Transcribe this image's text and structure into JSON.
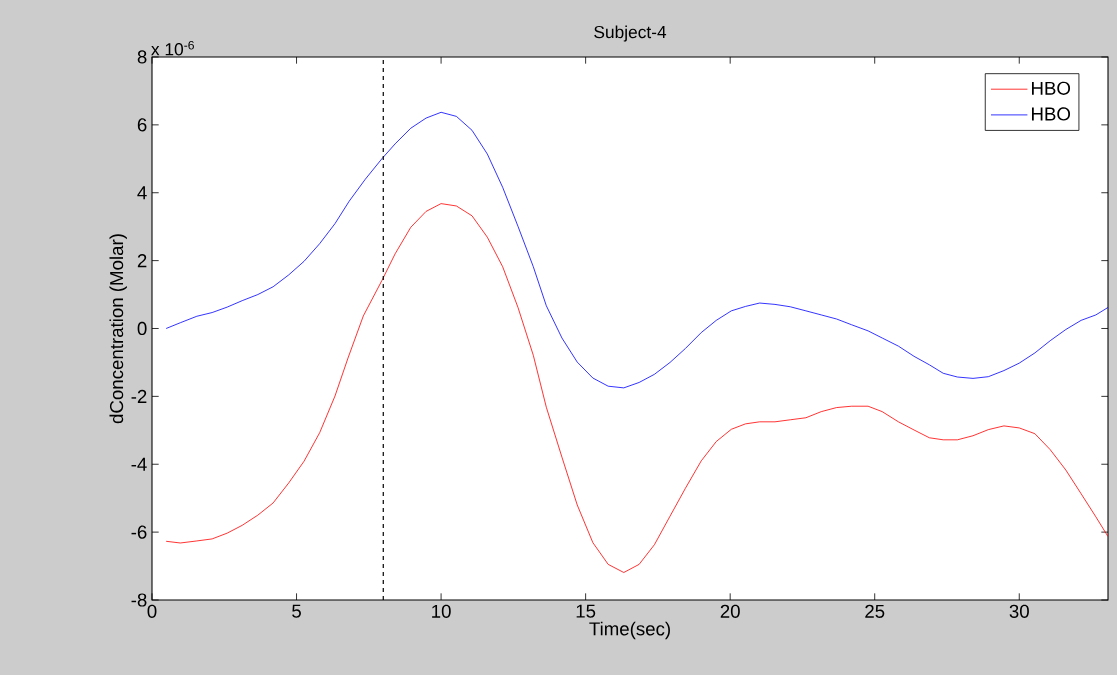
{
  "chart_data": {
    "type": "line",
    "title": "Subject-4",
    "xlabel": "Time(sec)",
    "ylabel": "dConcentration (Molar)",
    "annotations": [
      "x 10$^{-6}$"
    ],
    "series": [
      {
        "name": "HBO",
        "color": "#ff0000",
        "x": [
          0.49,
          0.98,
          1.55,
          2.08,
          2.6,
          3.12,
          3.66,
          4.19,
          4.73,
          5.26,
          5.8,
          6.33,
          6.78,
          7.31,
          7.95,
          8.41,
          8.95,
          9.48,
          10,
          10.53,
          11.07,
          11.6,
          12.13,
          12.66,
          13.19,
          13.64,
          14.18,
          14.71,
          15.25,
          15.78,
          16.32,
          16.85,
          17.38,
          17.92,
          18.45,
          19.0,
          19.52,
          20.04,
          20.53,
          21.02,
          21.55,
          22.08,
          22.62,
          23.15,
          23.68,
          24.2,
          24.77,
          25.26,
          25.82,
          26.36,
          26.89,
          27.37,
          27.86,
          28.4,
          28.93,
          29.47,
          30.0,
          30.54,
          31.07,
          31.61,
          32.14,
          32.65,
          33.07
        ],
        "values": [
          -6.27,
          -6.32,
          -6.26,
          -6.2,
          -6.03,
          -5.8,
          -5.5,
          -5.14,
          -4.55,
          -3.91,
          -3.07,
          -1.99,
          -0.87,
          0.37,
          1.41,
          2.2,
          2.98,
          3.45,
          3.68,
          3.61,
          3.32,
          2.69,
          1.82,
          0.62,
          -0.79,
          -2.32,
          -3.79,
          -5.2,
          -6.31,
          -6.95,
          -7.19,
          -6.95,
          -6.37,
          -5.53,
          -4.71,
          -3.9,
          -3.33,
          -2.97,
          -2.81,
          -2.75,
          -2.75,
          -2.69,
          -2.63,
          -2.45,
          -2.33,
          -2.29,
          -2.29,
          -2.45,
          -2.75,
          -2.99,
          -3.22,
          -3.28,
          -3.28,
          -3.16,
          -2.98,
          -2.87,
          -2.93,
          -3.1,
          -3.57,
          -4.17,
          -4.87,
          -5.55,
          -6.13
        ]
      },
      {
        "name": "HBO",
        "color": "#0000ff",
        "x": [
          0.49,
          0.98,
          1.55,
          2.08,
          2.6,
          3.12,
          3.66,
          4.19,
          4.73,
          5.26,
          5.8,
          6.33,
          6.82,
          7.38,
          7.95,
          8.41,
          8.95,
          9.48,
          10,
          10.53,
          11.07,
          11.6,
          12.13,
          12.66,
          13.19,
          13.64,
          14.18,
          14.71,
          15.25,
          15.78,
          16.32,
          16.85,
          17.38,
          17.92,
          18.45,
          19.0,
          19.52,
          20.04,
          20.53,
          21.02,
          21.55,
          22.08,
          22.62,
          23.15,
          23.68,
          24.2,
          24.77,
          25.26,
          25.82,
          26.36,
          26.89,
          27.37,
          27.86,
          28.4,
          28.93,
          29.47,
          30.0,
          30.54,
          31.07,
          31.61,
          32.14,
          32.65,
          33.07
        ],
        "values": [
          0,
          0.17,
          0.36,
          0.47,
          0.63,
          0.82,
          1.0,
          1.23,
          1.58,
          1.98,
          2.5,
          3.09,
          3.75,
          4.4,
          5.0,
          5.44,
          5.9,
          6.2,
          6.37,
          6.25,
          5.84,
          5.14,
          4.16,
          3.01,
          1.82,
          0.67,
          -0.28,
          -0.99,
          -1.46,
          -1.7,
          -1.75,
          -1.59,
          -1.35,
          -1.0,
          -0.59,
          -0.12,
          0.24,
          0.52,
          0.65,
          0.75,
          0.71,
          0.64,
          0.52,
          0.4,
          0.28,
          0.11,
          -0.07,
          -0.28,
          -0.52,
          -0.82,
          -1.07,
          -1.32,
          -1.43,
          -1.47,
          -1.42,
          -1.24,
          -1.02,
          -0.72,
          -0.36,
          -0.03,
          0.24,
          0.4,
          0.62
        ]
      }
    ],
    "xlim": [
      0,
      33.07
    ],
    "ylim": [
      -8,
      8
    ],
    "xticks": [
      0,
      5,
      10,
      15,
      20,
      25,
      30
    ],
    "yticks": [
      -8,
      -6,
      -4,
      -2,
      0,
      2,
      4,
      6,
      8
    ],
    "ref_lines": [
      {
        "axis": "x",
        "value": 8,
        "color": "#000000",
        "line_style": "dashed"
      }
    ],
    "legend": "top right",
    "grid": false,
    "line_style": "solid",
    "marker": "none"
  }
}
